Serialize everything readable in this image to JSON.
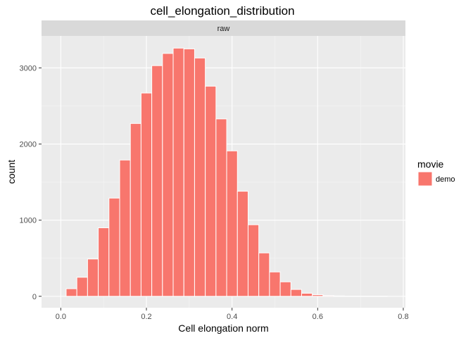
{
  "chart_data": {
    "type": "bar",
    "title": "cell_elongation_distribution",
    "xlabel": "Cell elongation norm",
    "ylabel": "count",
    "facet_label": "raw",
    "xlim": [
      -0.045,
      0.805
    ],
    "ylim": [
      -150,
      3420
    ],
    "x_ticks": [
      0.0,
      0.2,
      0.4,
      0.6,
      0.8
    ],
    "x_tick_labels": [
      "0.0",
      "0.2",
      "0.4",
      "0.6",
      "0.8"
    ],
    "y_ticks": [
      0,
      1000,
      2000,
      3000
    ],
    "y_tick_labels": [
      "0",
      "1000",
      "2000",
      "3000"
    ],
    "grid": true,
    "legend": {
      "title": "movie",
      "placement": "right",
      "entries": [
        {
          "label": "demo",
          "color": "#F8766D"
        }
      ]
    },
    "bin_width": 0.025,
    "series": [
      {
        "name": "demo",
        "color": "#F8766D",
        "bins": [
          {
            "x": 0.025,
            "count": 100
          },
          {
            "x": 0.05,
            "count": 250
          },
          {
            "x": 0.075,
            "count": 490
          },
          {
            "x": 0.1,
            "count": 900
          },
          {
            "x": 0.125,
            "count": 1290
          },
          {
            "x": 0.15,
            "count": 1790
          },
          {
            "x": 0.175,
            "count": 2270
          },
          {
            "x": 0.2,
            "count": 2670
          },
          {
            "x": 0.225,
            "count": 3030
          },
          {
            "x": 0.25,
            "count": 3190
          },
          {
            "x": 0.275,
            "count": 3260
          },
          {
            "x": 0.3,
            "count": 3250
          },
          {
            "x": 0.325,
            "count": 3130
          },
          {
            "x": 0.35,
            "count": 2760
          },
          {
            "x": 0.375,
            "count": 2330
          },
          {
            "x": 0.4,
            "count": 1910
          },
          {
            "x": 0.425,
            "count": 1380
          },
          {
            "x": 0.45,
            "count": 940
          },
          {
            "x": 0.475,
            "count": 570
          },
          {
            "x": 0.5,
            "count": 320
          },
          {
            "x": 0.525,
            "count": 190
          },
          {
            "x": 0.55,
            "count": 90
          },
          {
            "x": 0.575,
            "count": 40
          },
          {
            "x": 0.6,
            "count": 20
          },
          {
            "x": 0.625,
            "count": 10
          },
          {
            "x": 0.65,
            "count": 5
          },
          {
            "x": 0.675,
            "count": 2
          },
          {
            "x": 0.7,
            "count": 1
          },
          {
            "x": 0.725,
            "count": 1
          },
          {
            "x": 0.75,
            "count": 1
          }
        ]
      }
    ]
  }
}
